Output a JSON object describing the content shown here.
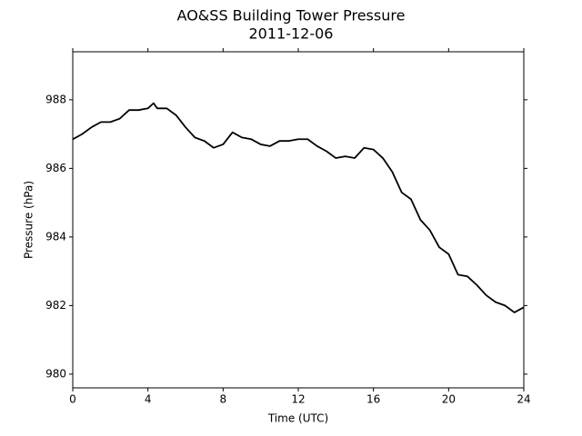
{
  "chart_data": {
    "type": "line",
    "title": "AO&SS Building Tower Pressure",
    "subtitle": "2011-12-06",
    "x_label": "Time (UTC)",
    "y_label": "Pressure (hPa)",
    "x": [
      0,
      0.5,
      1,
      1.5,
      2,
      2.5,
      3,
      3.5,
      4,
      4.3,
      4.5,
      5,
      5.5,
      6,
      6.5,
      7,
      7.5,
      8,
      8.5,
      9,
      9.5,
      10,
      10.5,
      11,
      11.5,
      12,
      12.5,
      13,
      13.5,
      14,
      14.5,
      15,
      15.5,
      16,
      16.5,
      17,
      17.5,
      18,
      18.5,
      19,
      19.5,
      20,
      20.5,
      21,
      21.5,
      22,
      22.5,
      23,
      23.5,
      24
    ],
    "series": [
      {
        "name": "Pressure",
        "color": "#000000",
        "values": [
          986.85,
          987.0,
          987.2,
          987.35,
          987.35,
          987.45,
          987.7,
          987.7,
          987.75,
          987.9,
          987.75,
          987.75,
          987.55,
          987.2,
          986.9,
          986.8,
          986.6,
          986.7,
          987.05,
          986.9,
          986.85,
          986.7,
          986.65,
          986.8,
          986.8,
          986.85,
          986.85,
          986.65,
          986.5,
          986.3,
          986.35,
          986.3,
          986.6,
          986.55,
          986.3,
          985.9,
          985.3,
          985.1,
          984.5,
          984.2,
          983.7,
          983.5,
          982.9,
          982.85,
          982.6,
          982.3,
          982.1,
          982.0,
          981.8,
          981.95
        ]
      }
    ],
    "xlim": [
      0,
      24
    ],
    "xticks": [
      0,
      4,
      8,
      12,
      16,
      20,
      24
    ],
    "ylim": [
      979.6,
      989.4
    ],
    "yticks": [
      980,
      982,
      984,
      986,
      988
    ]
  }
}
